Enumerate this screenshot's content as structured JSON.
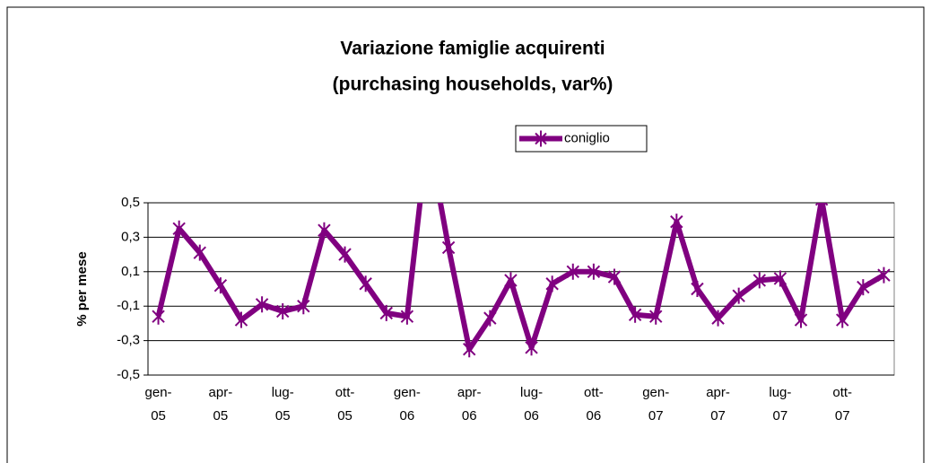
{
  "chart_data": {
    "type": "line",
    "title": "Variazione famiglie acquirenti",
    "subtitle": "(purchasing households, var%)",
    "y_label": "% per mese",
    "categories": [
      "gen-05",
      null,
      null,
      "apr-05",
      null,
      null,
      "lug-05",
      null,
      null,
      "ott-05",
      null,
      null,
      "gen-06",
      null,
      null,
      "apr-06",
      null,
      null,
      "lug-06",
      null,
      null,
      "ott-06",
      null,
      null,
      "gen-07",
      null,
      null,
      "apr-07",
      null,
      null,
      "lug-07",
      null,
      null,
      "ott-07",
      null,
      null
    ],
    "series": [
      {
        "name": "coniglio",
        "color": "#800080",
        "values": [
          -0.16,
          0.35,
          0.21,
          0.02,
          -0.18,
          -0.09,
          -0.13,
          -0.1,
          0.34,
          0.2,
          0.03,
          -0.14,
          -0.16,
          0.9,
          0.24,
          -0.35,
          -0.17,
          0.05,
          -0.34,
          0.03,
          0.1,
          0.1,
          0.07,
          -0.15,
          -0.16,
          0.39,
          0.0,
          -0.17,
          -0.04,
          0.05,
          0.06,
          -0.18,
          0.52,
          -0.18,
          0.01,
          0.08
        ]
      }
    ],
    "ylim": [
      -0.5,
      0.5
    ],
    "yticks": [
      {
        "value": -0.5,
        "label": "-0,5"
      },
      {
        "value": -0.3,
        "label": "-0,3"
      },
      {
        "value": -0.1,
        "label": "-0,1"
      },
      {
        "value": 0.1,
        "label": "0,1"
      },
      {
        "value": 0.3,
        "label": "0,3"
      },
      {
        "value": 0.5,
        "label": "0,5"
      }
    ],
    "grid": true,
    "legend": "top-right"
  }
}
